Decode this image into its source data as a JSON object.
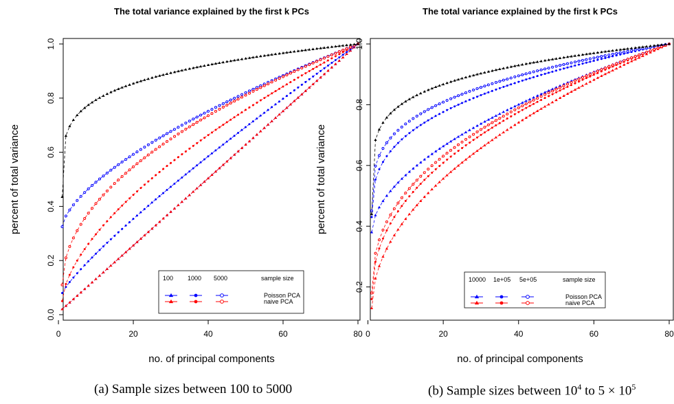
{
  "captions": {
    "a": "(a) Sample sizes between 100 to 5000",
    "b_prefix": "(b) Sample sizes between 10",
    "b_exp1": "4",
    "b_mid": " to 5 × 10",
    "b_exp2": "5"
  },
  "colors": {
    "poisson": "#0000ff",
    "naive": "#ff0000",
    "top": "#000000"
  },
  "chart_data": [
    {
      "type": "scatter",
      "title": "The total variance explained by the first k PCs",
      "xlabel": "no. of principal components",
      "ylabel": "percent of total variance",
      "xlim": [
        1,
        80
      ],
      "ylim": [
        0,
        1
      ],
      "xticks": [
        "0",
        "20",
        "40",
        "60",
        "80"
      ],
      "yticks": [
        "0.0",
        "0.2",
        "0.4",
        "0.6",
        "0.8",
        "1.0"
      ],
      "legend": {
        "placement": "bottom-right",
        "sizes": [
          "100",
          "1000",
          "5000"
        ],
        "header": "sample size",
        "rows": [
          "Poisson PCA",
          "naive PCA"
        ]
      },
      "series": [
        {
          "method": "Poisson PCA",
          "size": "100",
          "marker": "triangle",
          "color": "#0000ff",
          "x_start": 1,
          "x_end": 80,
          "y_first": 0.02,
          "y_last": 1.0,
          "power": 1.0
        },
        {
          "method": "naive PCA",
          "size": "100",
          "marker": "triangle",
          "color": "#ff0000",
          "x_start": 1,
          "x_end": 80,
          "y_first": 0.02,
          "y_last": 1.0,
          "power": 1.0
        },
        {
          "method": "Poisson PCA",
          "size": "1000",
          "marker": "dot",
          "color": "#0000ff",
          "x_start": 1,
          "x_end": 80,
          "y_first": 0.08,
          "y_last": 1.0,
          "power": 0.85
        },
        {
          "method": "naive PCA",
          "size": "1000",
          "marker": "dot",
          "color": "#ff0000",
          "x_start": 1,
          "x_end": 80,
          "y_first": 0.05,
          "y_last": 1.0,
          "power": 0.62
        },
        {
          "method": "Poisson PCA",
          "size": "5000",
          "marker": "circle",
          "color": "#0000ff",
          "x_start": 1,
          "x_end": 80,
          "y_first": 0.325,
          "y_last": 1.0,
          "power": 0.65
        },
        {
          "method": "naive PCA",
          "size": "5000",
          "marker": "circle",
          "color": "#ff0000",
          "x_start": 1,
          "x_end": 80,
          "y_first": 0.11,
          "y_last": 1.0,
          "power": 0.5
        },
        {
          "method": "top",
          "size": "",
          "marker": "triangle",
          "color": "#000000",
          "x_start": 1,
          "x_end": 80,
          "y_first": 0.435,
          "y_last": 1.0,
          "power": 0.21
        }
      ]
    },
    {
      "type": "scatter",
      "title": "The total variance explained by the first k PCs",
      "xlabel": "no. of principal components",
      "ylabel": "percent of total variance",
      "xlim": [
        1,
        80
      ],
      "ylim": [
        0.12,
        1
      ],
      "xticks": [
        "0",
        "20",
        "40",
        "60",
        "80"
      ],
      "yticks": [
        "0.2",
        "0.4",
        "0.6",
        "0.8",
        "1.0"
      ],
      "legend": {
        "placement": "bottom-right",
        "sizes": [
          "10000",
          "1e+05",
          "5e+05"
        ],
        "header": "sample size",
        "rows": [
          "Poisson PCA",
          "naive PCA"
        ]
      },
      "series": [
        {
          "method": "Poisson PCA",
          "size": "10000",
          "marker": "triangle",
          "color": "#0000ff",
          "x_start": 1,
          "x_end": 80,
          "y_first": 0.38,
          "y_last": 1.0,
          "power": 0.55
        },
        {
          "method": "naive PCA",
          "size": "10000",
          "marker": "triangle",
          "color": "#ff0000",
          "x_start": 1,
          "x_end": 80,
          "y_first": 0.13,
          "y_last": 1.0,
          "power": 0.5
        },
        {
          "method": "Poisson PCA",
          "size": "1e+05",
          "marker": "dot",
          "color": "#0000ff",
          "x_start": 1,
          "x_end": 80,
          "y_first": 0.43,
          "y_last": 1.0,
          "power": 0.35
        },
        {
          "method": "naive PCA",
          "size": "1e+05",
          "marker": "dot",
          "color": "#ff0000",
          "x_start": 1,
          "x_end": 80,
          "y_first": 0.16,
          "y_last": 1.0,
          "power": 0.44
        },
        {
          "method": "Poisson PCA",
          "size": "5e+05",
          "marker": "circle",
          "color": "#0000ff",
          "x_start": 1,
          "x_end": 80,
          "y_first": 0.45,
          "y_last": 1.0,
          "power": 0.3
        },
        {
          "method": "naive PCA",
          "size": "5e+05",
          "marker": "circle",
          "color": "#ff0000",
          "x_start": 1,
          "x_end": 80,
          "y_first": 0.18,
          "y_last": 1.0,
          "power": 0.42
        },
        {
          "method": "top",
          "size": "",
          "marker": "triangle",
          "color": "#000000",
          "x_start": 1,
          "x_end": 80,
          "y_first": 0.44,
          "y_last": 1.0,
          "power": 0.19
        }
      ]
    }
  ]
}
